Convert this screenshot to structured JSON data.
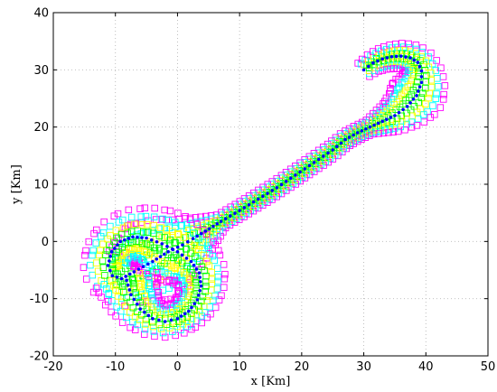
{
  "chart_data": {
    "type": "scatter",
    "title": "",
    "xlabel": "x [Km]",
    "ylabel": "y [Km]",
    "xlim": [
      -20,
      50
    ],
    "ylim": [
      -20,
      40
    ],
    "xticks": [
      -20,
      -10,
      0,
      10,
      20,
      30,
      40,
      50
    ],
    "yticks": [
      -20,
      -10,
      0,
      10,
      20,
      30,
      40
    ],
    "grid": true,
    "marker_colors": [
      "#ff00ff",
      "#00ffff",
      "#ffff00",
      "#00ff00"
    ],
    "center_track_color": "#0000ff",
    "track": [
      [
        30,
        30
      ],
      [
        31.5,
        31.2
      ],
      [
        33,
        31.9
      ],
      [
        34.5,
        32.3
      ],
      [
        36,
        32.4
      ],
      [
        37.5,
        32.1
      ],
      [
        38.7,
        31.3
      ],
      [
        39.3,
        29.8
      ],
      [
        39.3,
        27.8
      ],
      [
        38.5,
        25.5
      ],
      [
        37,
        23.6
      ],
      [
        35,
        22.0
      ],
      [
        33,
        21.0
      ],
      [
        31,
        20.0
      ],
      [
        29,
        19.0
      ],
      [
        27,
        17.8
      ],
      [
        25,
        16.0
      ],
      [
        22,
        13.8
      ],
      [
        19,
        11.6
      ],
      [
        16,
        9.4
      ],
      [
        13,
        7.4
      ],
      [
        10,
        5.4
      ],
      [
        7,
        3.5
      ],
      [
        4.5,
        1.8
      ],
      [
        2.5,
        0.5
      ],
      [
        0.8,
        -0.6
      ],
      [
        -1.5,
        -1.8
      ],
      [
        -4,
        -3.5
      ],
      [
        -7,
        -5.3
      ],
      [
        -9,
        -6.5
      ],
      [
        -10.5,
        -6.0
      ],
      [
        -11.2,
        -4.2
      ],
      [
        -10.6,
        -1.8
      ],
      [
        -9.2,
        0.0
      ],
      [
        -7.2,
        0.8
      ],
      [
        -5,
        0.6
      ],
      [
        -2.5,
        -0.4
      ],
      [
        0,
        -1.8
      ],
      [
        2.2,
        -3.5
      ],
      [
        3.5,
        -5.5
      ],
      [
        3.8,
        -7.8
      ],
      [
        3.2,
        -10.2
      ],
      [
        1.8,
        -12.2
      ],
      [
        0,
        -13.5
      ],
      [
        -2,
        -14
      ],
      [
        -4,
        -13.5
      ],
      [
        -6,
        -11.8
      ],
      [
        -7.5,
        -9.3
      ],
      [
        -8.2,
        -6.8
      ]
    ]
  }
}
